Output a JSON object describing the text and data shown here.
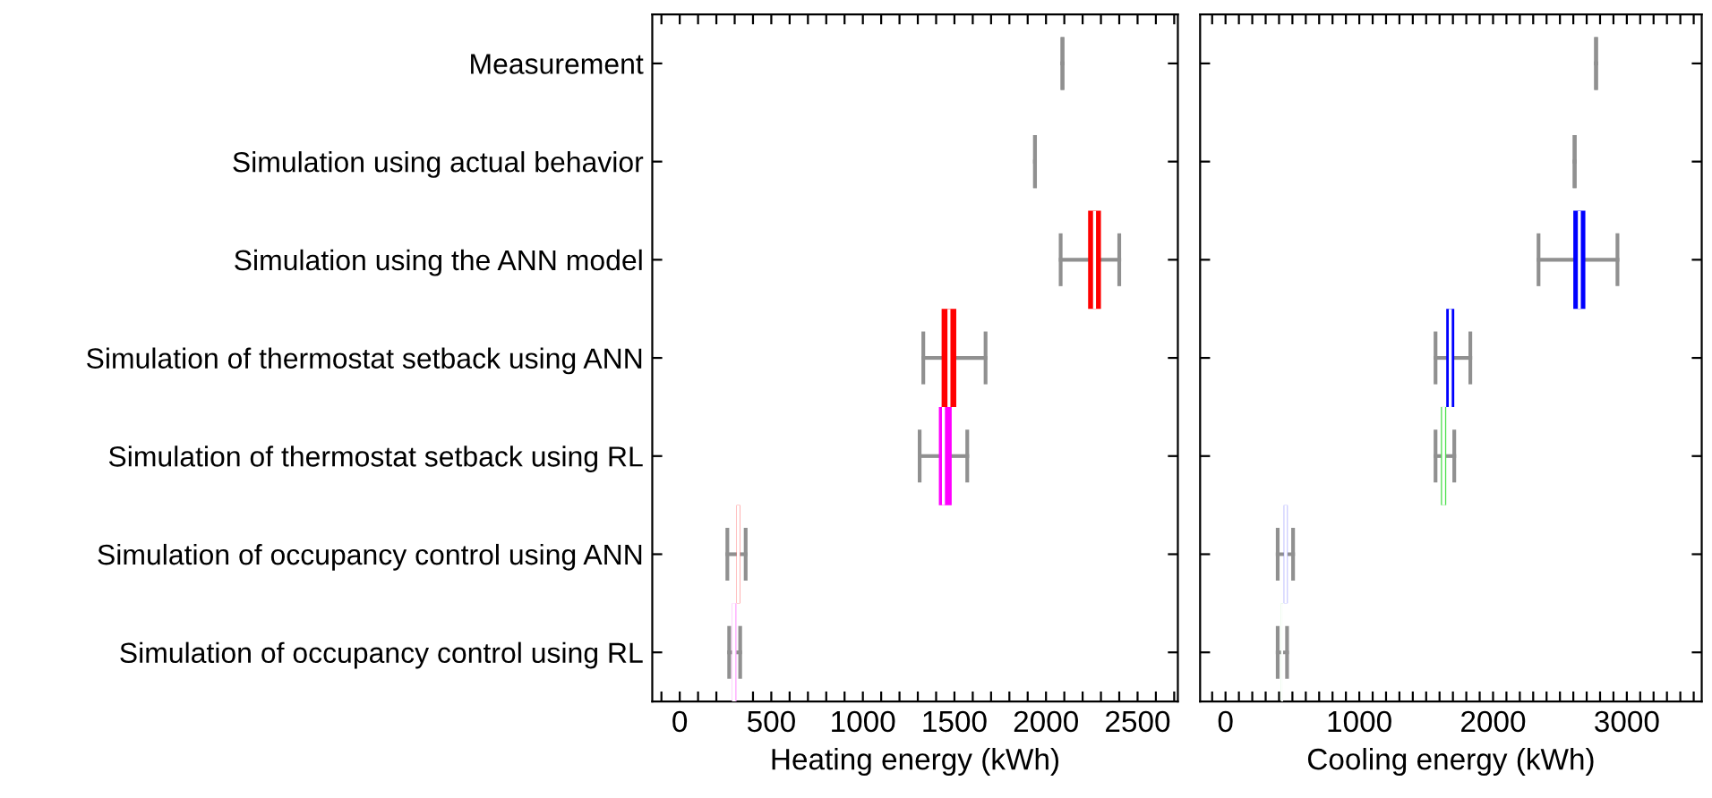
{
  "chart_data": [
    {
      "type": "box",
      "orientation": "horizontal",
      "xlabel": "Heating energy (kWh)",
      "categories": [
        "Measurement",
        "Simulation using actual behavior",
        "Simulation using the ANN model",
        "Simulation of thermostat setback using ANN",
        "Simulation of thermostat setback using RL",
        "Simulation of occupancy control using ANN",
        "Simulation of occupancy control using RL"
      ],
      "colors": [
        "#808080",
        "#808080",
        "#ff0000",
        "#ff0000",
        "#ff00ff",
        "#ff7070",
        "#ffaaff"
      ],
      "boxes": [
        {
          "low": 2090,
          "q1": 2090,
          "median": 2090,
          "q3": 2090,
          "high": 2090
        },
        {
          "low": 1940,
          "q1": 1940,
          "median": 1940,
          "q3": 1940,
          "high": 1940
        },
        {
          "low": 2080,
          "q1": 2230,
          "median": 2265,
          "q3": 2300,
          "high": 2400
        },
        {
          "low": 1330,
          "q1": 1430,
          "median": 1470,
          "q3": 1510,
          "high": 1670
        },
        {
          "low": 1310,
          "q1": 1415,
          "median": 1440,
          "q3": 1485,
          "high": 1570
        },
        {
          "low": 260,
          "q1": 310,
          "median": 320,
          "q3": 330,
          "high": 360
        },
        {
          "low": 270,
          "q1": 285,
          "median": 295,
          "q3": 310,
          "high": 330
        }
      ],
      "xlim": [
        -150,
        2720
      ],
      "xticks": [
        {
          "value": -100,
          "label": null
        },
        0,
        {
          "value": 100,
          "label": null
        },
        {
          "value": 200,
          "label": null
        },
        {
          "value": 300,
          "label": null
        },
        {
          "value": 400,
          "label": null
        },
        500,
        {
          "value": 600,
          "label": null
        },
        {
          "value": 700,
          "label": null
        },
        {
          "value": 800,
          "label": null
        },
        {
          "value": 900,
          "label": null
        },
        1000,
        {
          "value": 1100,
          "label": null
        },
        {
          "value": 1200,
          "label": null
        },
        {
          "value": 1300,
          "label": null
        },
        {
          "value": 1400,
          "label": null
        },
        1500,
        {
          "value": 1600,
          "label": null
        },
        {
          "value": 1700,
          "label": null
        },
        {
          "value": 1800,
          "label": null
        },
        {
          "value": 1900,
          "label": null
        },
        2000,
        {
          "value": 2100,
          "label": null
        },
        {
          "value": 2200,
          "label": null
        },
        {
          "value": 2300,
          "label": null
        },
        {
          "value": 2400,
          "label": null
        },
        2500,
        {
          "value": 2600,
          "label": null
        },
        {
          "value": 2700,
          "label": null
        }
      ],
      "grid": false
    },
    {
      "type": "box",
      "orientation": "horizontal",
      "xlabel": "Cooling energy (kWh)",
      "tick_labels": "x",
      "categories": [
        null,
        null,
        null,
        null,
        null,
        null,
        null
      ],
      "colors": [
        "#808080",
        "#808080",
        "#0000ff",
        "#0000ff",
        "#50e050",
        "#9090ff",
        "#c0eec0"
      ],
      "boxes": [
        {
          "low": 2770,
          "q1": 2770,
          "median": 2770,
          "q3": 2770,
          "high": 2770
        },
        {
          "low": 2610,
          "q1": 2610,
          "median": 2610,
          "q3": 2610,
          "high": 2610
        },
        {
          "low": 2340,
          "q1": 2600,
          "median": 2645,
          "q3": 2690,
          "high": 2930
        },
        {
          "low": 1570,
          "q1": 1650,
          "median": 1680,
          "q3": 1710,
          "high": 1830
        },
        {
          "low": 1570,
          "q1": 1610,
          "median": 1630,
          "q3": 1650,
          "high": 1710
        },
        {
          "low": 390,
          "q1": 435,
          "median": 450,
          "q3": 465,
          "high": 505
        },
        {
          "low": 390,
          "q1": 415,
          "median": 425,
          "q3": 430,
          "high": 460
        }
      ],
      "xlim": [
        -190,
        3560
      ],
      "xticks": [
        {
          "value": -100,
          "label": null
        },
        0,
        {
          "value": 100,
          "label": null
        },
        {
          "value": 200,
          "label": null
        },
        {
          "value": 300,
          "label": null
        },
        {
          "value": 400,
          "label": null
        },
        {
          "value": 500,
          "label": null
        },
        {
          "value": 600,
          "label": null
        },
        {
          "value": 700,
          "label": null
        },
        {
          "value": 800,
          "label": null
        },
        {
          "value": 900,
          "label": null
        },
        1000,
        {
          "value": 1100,
          "label": null
        },
        {
          "value": 1200,
          "label": null
        },
        {
          "value": 1300,
          "label": null
        },
        {
          "value": 1400,
          "label": null
        },
        {
          "value": 1500,
          "label": null
        },
        {
          "value": 1600,
          "label": null
        },
        {
          "value": 1700,
          "label": null
        },
        {
          "value": 1800,
          "label": null
        },
        {
          "value": 1900,
          "label": null
        },
        2000,
        {
          "value": 2100,
          "label": null
        },
        {
          "value": 2200,
          "label": null
        },
        {
          "value": 2300,
          "label": null
        },
        {
          "value": 2400,
          "label": null
        },
        {
          "value": 2500,
          "label": null
        },
        {
          "value": 2600,
          "label": null
        },
        {
          "value": 2700,
          "label": null
        },
        {
          "value": 2800,
          "label": null
        },
        {
          "value": 2900,
          "label": null
        },
        3000,
        {
          "value": 3100,
          "label": null
        },
        {
          "value": 3200,
          "label": null
        },
        {
          "value": 3300,
          "label": null
        },
        {
          "value": 3400,
          "label": null
        },
        {
          "value": 3500,
          "label": null
        }
      ],
      "grid": false
    }
  ]
}
